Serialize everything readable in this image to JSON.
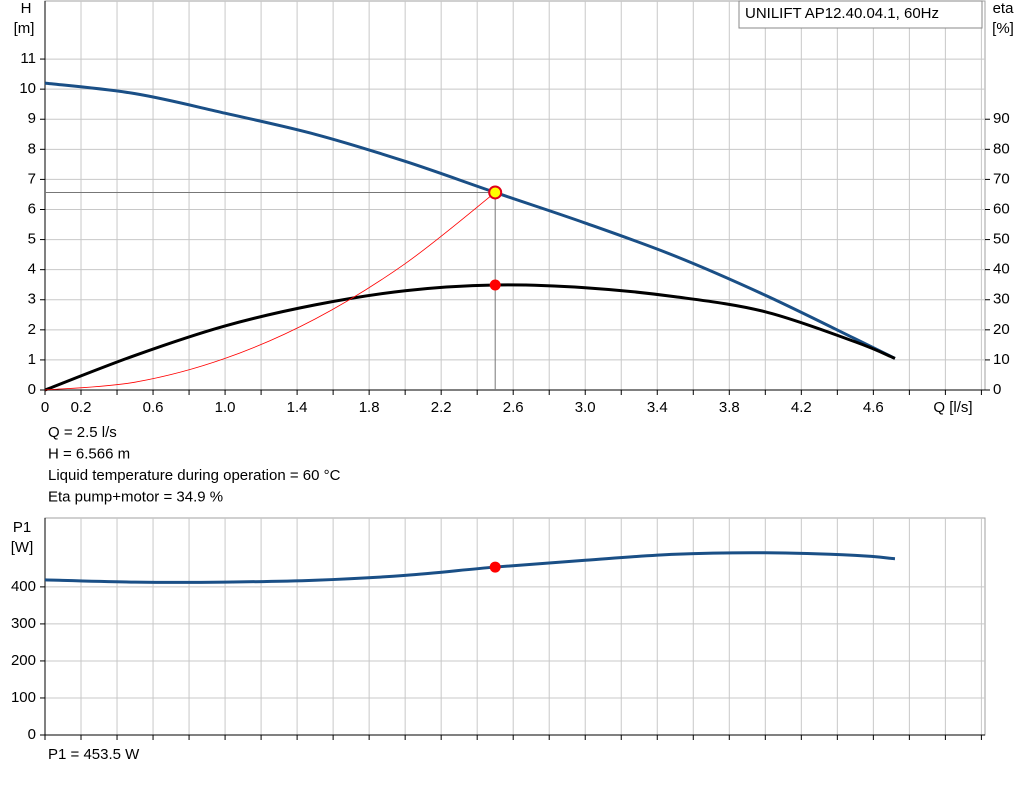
{
  "chart_data": [
    {
      "type": "line",
      "title": "UNILIFT AP12.40.04.1, 60Hz",
      "ylabel": "H",
      "yunit": "[m]",
      "y2label": "eta",
      "y2unit": "[%]",
      "xlabel": "Q [l/s]",
      "x": [
        0,
        0.5,
        1.0,
        1.5,
        2.0,
        2.5,
        3.0,
        3.5,
        4.0,
        4.5,
        4.72
      ],
      "series": [
        {
          "color": "#1a4f86",
          "values": [
            10.2,
            9.85,
            9.2,
            8.5,
            7.6,
            6.566,
            5.55,
            4.45,
            3.15,
            1.7,
            1.05
          ]
        },
        {
          "color": "#000000",
          "axis": "y2",
          "values": [
            0,
            11.5,
            21.3,
            28.3,
            33,
            34.9,
            34,
            31,
            26,
            16,
            10.5
          ]
        },
        {
          "color": "#ff0000",
          "values": [
            0,
            0.26,
            1.05,
            2.36,
            4.2,
            6.566,
            null,
            null,
            null,
            null,
            null
          ]
        }
      ],
      "operating_point": {
        "x": 2.5,
        "y": 6.566,
        "eta": 34.9
      },
      "xlim": [
        0,
        5.22
      ],
      "ylim": [
        0,
        12.93
      ],
      "y2lim": [
        0,
        129.3
      ],
      "xticks": [
        0,
        0.2,
        0.6,
        {
          "value": 1.0,
          "label": "1.0"
        },
        1.4,
        1.8,
        2.2,
        2.6,
        {
          "value": 3.0,
          "label": "3.0"
        },
        3.4,
        3.8,
        4.2,
        4.6
      ],
      "x_minor_ticks": [
        0.4,
        0.8,
        1.2,
        1.6,
        2.0,
        2.4,
        2.8,
        3.2,
        3.6,
        4.0,
        4.4,
        4.8,
        5.0,
        5.2
      ],
      "yticks": [
        0,
        1,
        2,
        3,
        4,
        5,
        6,
        7,
        8,
        9,
        10,
        11
      ],
      "y2ticks": [
        0,
        10,
        20,
        30,
        40,
        50,
        60,
        70,
        80,
        90
      ],
      "grid": true,
      "notes": [
        "Q = 2.5 l/s",
        "H = 6.566 m",
        "Liquid temperature during operation = 60 °C",
        "Eta pump+motor = 34.9 %"
      ]
    },
    {
      "type": "line",
      "ylabel": "P1",
      "yunit": "[W]",
      "x": [
        0,
        0.5,
        1.0,
        1.5,
        2.0,
        2.5,
        3.0,
        3.5,
        4.0,
        4.5,
        4.72
      ],
      "series": [
        {
          "color": "#1a4f86",
          "values": [
            419,
            413,
            413,
            418,
            431,
            453.5,
            472,
            488,
            492,
            485,
            476
          ]
        }
      ],
      "operating_point": {
        "x": 2.5,
        "y": 453.5
      },
      "xlim": [
        0,
        5.22
      ],
      "ylim": [
        0,
        586
      ],
      "x_minor_ticks": [
        0,
        0.2,
        0.4,
        0.6,
        0.8,
        1.0,
        1.2,
        1.4,
        1.6,
        1.8,
        2.0,
        2.2,
        2.4,
        2.6,
        2.8,
        3.0,
        3.2,
        3.4,
        3.6,
        3.8,
        4.0,
        4.2,
        4.4,
        4.6,
        4.8,
        5.0,
        5.2
      ],
      "yticks": [
        0,
        100,
        200,
        300,
        400
      ],
      "grid": true,
      "notes": [
        "P1 = 453.5 W"
      ]
    }
  ]
}
